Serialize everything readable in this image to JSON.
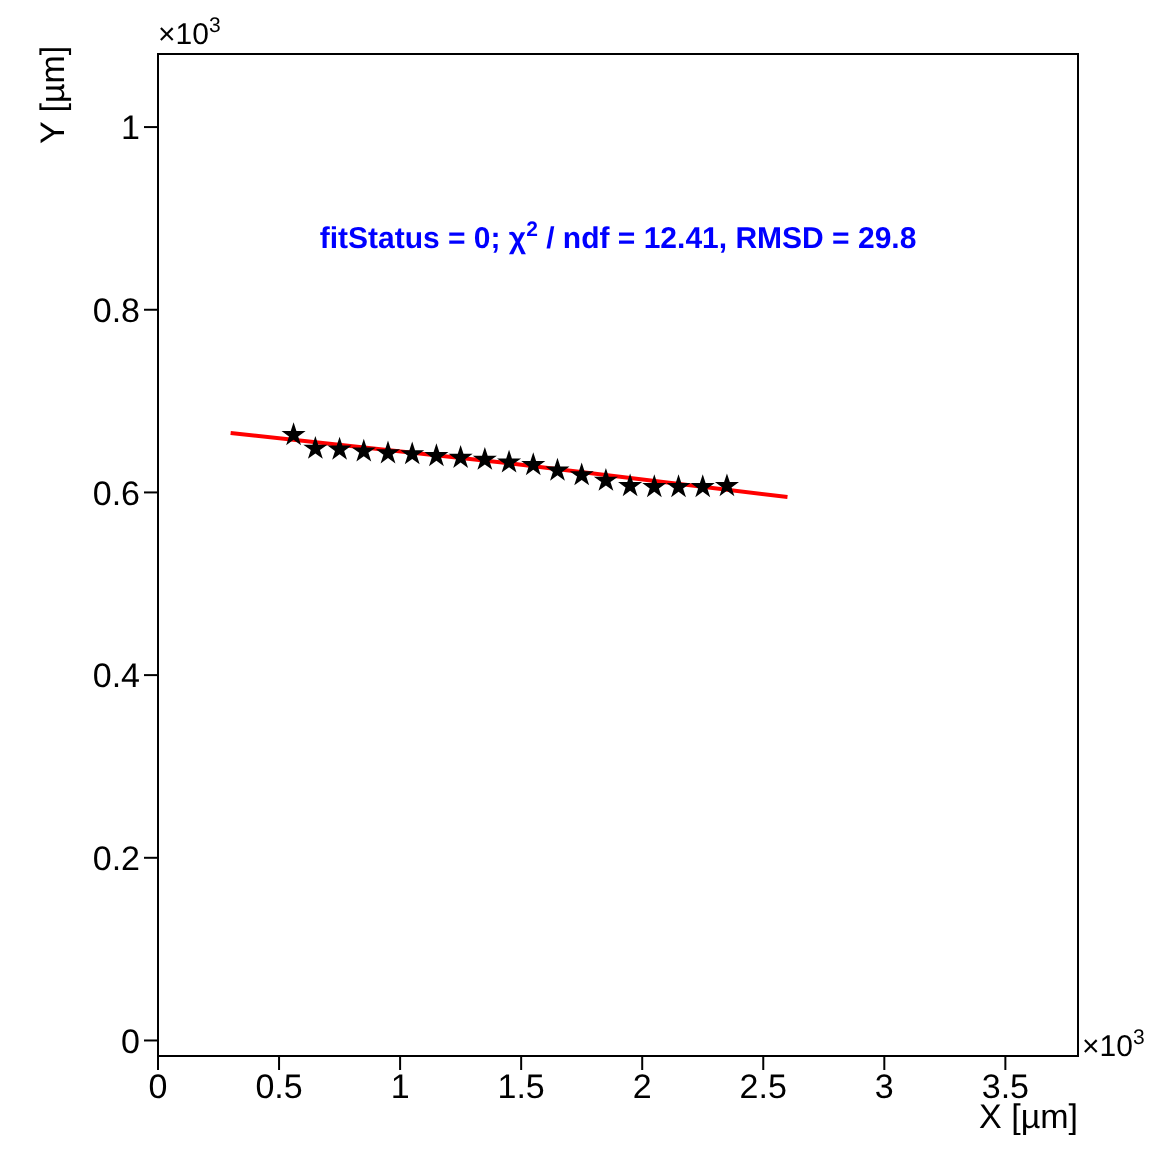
{
  "chart_data": {
    "type": "scatter",
    "xlabel": "X [µm]",
    "ylabel": "Y [µm]",
    "annotations": [
      "fitStatus = 0;  χ$^{2}$ / ndf = 12.41, RMSD =  29.8",
      "×10$^{3}$",
      "×10$^{3}$"
    ],
    "series": [
      {
        "color": "#000000",
        "marker": "star",
        "x": [
          0.56,
          0.65,
          0.75,
          0.85,
          0.95,
          1.05,
          1.15,
          1.25,
          1.35,
          1.45,
          1.55,
          1.65,
          1.75,
          1.85,
          1.95,
          2.05,
          2.15,
          2.25,
          2.35
        ],
        "values": [
          0.663,
          0.648,
          0.647,
          0.645,
          0.643,
          0.642,
          0.64,
          0.638,
          0.636,
          0.633,
          0.63,
          0.624,
          0.619,
          0.613,
          0.607,
          0.606,
          0.606,
          0.606,
          0.607
        ]
      },
      {
        "type": "line",
        "color": "#ff0000",
        "marker": "none",
        "x": [
          0.3,
          1.45,
          2.6
        ],
        "values": [
          0.665,
          0.632,
          0.595
        ]
      }
    ],
    "xlim": [
      0,
      3.8
    ],
    "xticks": [
      0,
      0.5,
      1,
      1.5,
      2,
      2.5,
      3,
      3.5
    ],
    "ylim": [
      -0.017,
      1.08
    ],
    "yticks": [
      0,
      0.2,
      0.4,
      0.6,
      0.8,
      1
    ],
    "grid": false,
    "legend": false
  }
}
